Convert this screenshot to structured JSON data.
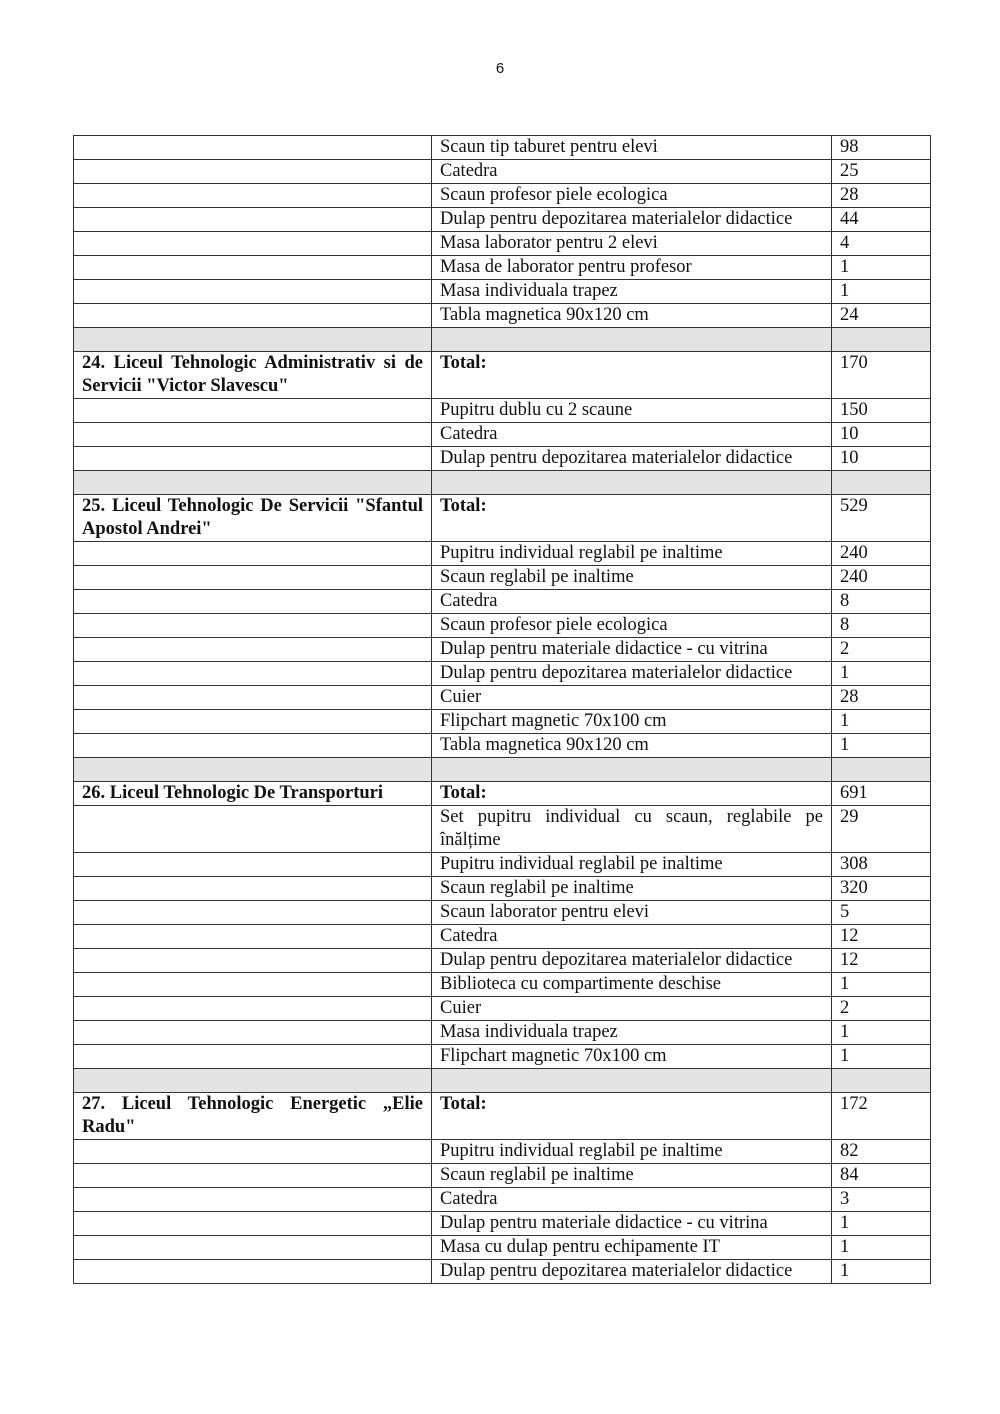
{
  "page_number": "6",
  "rows": [
    {
      "type": "item",
      "name": "Scaun tip taburet pentru elevi",
      "qty": "98"
    },
    {
      "type": "item",
      "name": "Catedra",
      "qty": "25"
    },
    {
      "type": "item",
      "name": "Scaun  profesor piele ecologica",
      "qty": "28"
    },
    {
      "type": "item",
      "name": "Dulap pentru depozitarea materialelor didactice",
      "qty": "44"
    },
    {
      "type": "item",
      "name": "Masa laborator pentru 2 elevi",
      "qty": "4"
    },
    {
      "type": "item",
      "name": "Masa de laborator pentru profesor",
      "qty": "1"
    },
    {
      "type": "item",
      "name": "Masa individuala trapez",
      "qty": "1"
    },
    {
      "type": "item",
      "name": "Tabla magnetica 90x120 cm",
      "qty": "24"
    },
    {
      "type": "sep"
    },
    {
      "type": "school",
      "school": "24. Liceul Tehnologic Administrativ si de Servicii \"Victor Slavescu\"",
      "name": "Total:",
      "qty": "170"
    },
    {
      "type": "item",
      "name": "Pupitru dublu cu 2 scaune",
      "qty": "150"
    },
    {
      "type": "item",
      "name": "Catedra",
      "qty": "10"
    },
    {
      "type": "item",
      "name": "Dulap pentru depozitarea materialelor didactice",
      "qty": "10"
    },
    {
      "type": "sep"
    },
    {
      "type": "school",
      "school": "25. Liceul Tehnologic De Servicii \"Sfantul Apostol Andrei\"",
      "name": "Total:",
      "qty": "529"
    },
    {
      "type": "item",
      "name": "Pupitru individual reglabil pe inaltime",
      "qty": "240"
    },
    {
      "type": "item",
      "name": "Scaun reglabil pe inaltime",
      "qty": "240"
    },
    {
      "type": "item",
      "name": "Catedra",
      "qty": "8"
    },
    {
      "type": "item",
      "name": "Scaun  profesor piele ecologica",
      "qty": "8"
    },
    {
      "type": "item",
      "name": "Dulap pentru materiale didactice - cu vitrina",
      "qty": "2"
    },
    {
      "type": "item",
      "name": "Dulap pentru depozitarea materialelor didactice",
      "qty": "1"
    },
    {
      "type": "item",
      "name": "Cuier",
      "qty": "28"
    },
    {
      "type": "item",
      "name": "Flipchart magnetic 70x100 cm",
      "qty": "1"
    },
    {
      "type": "item",
      "name": "Tabla magnetica 90x120 cm",
      "qty": "1"
    },
    {
      "type": "sep"
    },
    {
      "type": "school",
      "school": "26. Liceul Tehnologic De Transporturi",
      "name": "Total:",
      "qty": "691"
    },
    {
      "type": "item",
      "name": "Set pupitru individual cu scaun, reglabile pe înălțime",
      "qty": "29"
    },
    {
      "type": "item",
      "name": "Pupitru individual reglabil pe inaltime",
      "qty": "308"
    },
    {
      "type": "item",
      "name": "Scaun reglabil pe inaltime",
      "qty": "320"
    },
    {
      "type": "item",
      "name": "Scaun laborator pentru elevi",
      "qty": "5"
    },
    {
      "type": "item",
      "name": "Catedra",
      "qty": "12"
    },
    {
      "type": "item",
      "name": "Dulap pentru depozitarea materialelor didactice",
      "qty": "12"
    },
    {
      "type": "item",
      "name": "Biblioteca cu compartimente deschise",
      "qty": "1"
    },
    {
      "type": "item",
      "name": "Cuier",
      "qty": "2"
    },
    {
      "type": "item",
      "name": "Masa individuala trapez",
      "qty": "1"
    },
    {
      "type": "item",
      "name": "Flipchart magnetic 70x100 cm",
      "qty": "1"
    },
    {
      "type": "sep"
    },
    {
      "type": "school",
      "school": "27. Liceul Tehnologic Energetic „Elie Radu\"",
      "name": "Total:",
      "qty": "172"
    },
    {
      "type": "item",
      "name": "Pupitru individual reglabil pe inaltime",
      "qty": "82"
    },
    {
      "type": "item",
      "name": "Scaun reglabil pe inaltime",
      "qty": "84"
    },
    {
      "type": "item",
      "name": "Catedra",
      "qty": "3"
    },
    {
      "type": "item",
      "name": "Dulap pentru materiale didactice - cu vitrina",
      "qty": "1"
    },
    {
      "type": "item",
      "name": "Masa cu dulap pentru echipamente IT",
      "qty": "1"
    },
    {
      "type": "item",
      "name": "Dulap pentru depozitarea materialelor didactice",
      "qty": "1"
    }
  ]
}
